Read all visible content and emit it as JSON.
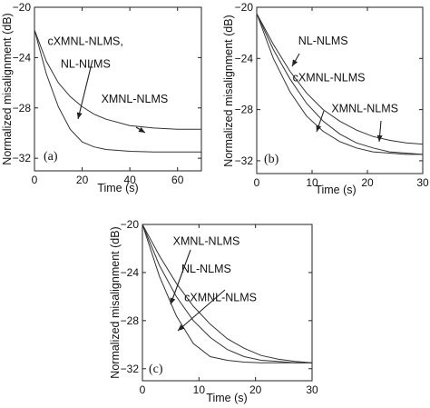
{
  "chart_data": [
    {
      "type": "line",
      "panel_label": "(a)",
      "xlabel": "Time (s)",
      "ylabel": "Normalized misalignment (dB)",
      "xlim": [
        0,
        70
      ],
      "ylim": [
        -33,
        -20
      ],
      "xticks": [
        0,
        20,
        40,
        60
      ],
      "yticks": [
        -20,
        -24,
        -28,
        -32
      ],
      "series": [
        {
          "x": [
            0,
            5,
            10,
            15,
            20,
            25,
            30,
            40,
            50,
            60,
            70
          ],
          "y": [
            -21.8,
            -25.3,
            -27.9,
            -29.7,
            -30.7,
            -31.1,
            -31.3,
            -31.45,
            -31.5,
            -31.5,
            -31.5
          ]
        },
        {
          "x": [
            0,
            5,
            10,
            15,
            20,
            25,
            30,
            40,
            50,
            60,
            70
          ],
          "y": [
            -21.8,
            -24.3,
            -26.0,
            -27.1,
            -27.9,
            -28.5,
            -28.9,
            -29.4,
            -29.6,
            -29.7,
            -29.7
          ]
        }
      ],
      "annotations": [
        {
          "text": "cXMNL-NLMS,",
          "x": 5.5,
          "y": -23.0
        },
        {
          "text": "NL-NLMS",
          "x": 11,
          "y": -24.8
        },
        {
          "text": "XMNL-NLMS",
          "x": 28,
          "y": -27.6
        }
      ]
    },
    {
      "type": "line",
      "panel_label": "(b)",
      "xlabel": "Time (s)",
      "ylabel": "Normalized misalignment (dB)",
      "xlim": [
        0,
        30
      ],
      "ylim": [
        -33,
        -20
      ],
      "xticks": [
        0,
        10,
        20,
        30
      ],
      "yticks": [
        -20,
        -24,
        -28,
        -32
      ],
      "series": [
        {
          "x": [
            0,
            3,
            6,
            9,
            12,
            15,
            18,
            21,
            24,
            27,
            30
          ],
          "y": [
            -20.5,
            -24.0,
            -26.6,
            -28.5,
            -29.7,
            -30.5,
            -31.0,
            -31.3,
            -31.4,
            -31.5,
            -31.5
          ]
        },
        {
          "x": [
            0,
            3,
            6,
            9,
            12,
            15,
            18,
            21,
            24,
            27,
            30
          ],
          "y": [
            -20.5,
            -23.3,
            -25.6,
            -27.5,
            -28.9,
            -29.9,
            -30.6,
            -31.0,
            -31.3,
            -31.4,
            -31.5
          ]
        },
        {
          "x": [
            0,
            3,
            6,
            9,
            12,
            15,
            18,
            21,
            24,
            27,
            30
          ],
          "y": [
            -20.5,
            -22.9,
            -25.0,
            -26.7,
            -28.0,
            -28.9,
            -29.6,
            -30.1,
            -30.4,
            -30.6,
            -30.7
          ]
        }
      ],
      "annotations": [
        {
          "text": "NL-NLMS",
          "x": 7.5,
          "y": -22.9
        },
        {
          "text": "cXMNL-NLMS",
          "x": 6.5,
          "y": -25.8
        },
        {
          "text": "XMNL-NLMS",
          "x": 13.5,
          "y": -28.2
        }
      ]
    },
    {
      "type": "line",
      "panel_label": "(c)",
      "xlabel": "Time (s)",
      "ylabel": "Normalized misalignment (dB)",
      "xlim": [
        0,
        30
      ],
      "ylim": [
        -33,
        -20
      ],
      "xticks": [
        0,
        10,
        20,
        30
      ],
      "yticks": [
        -20,
        -24,
        -28,
        -32
      ],
      "series": [
        {
          "x": [
            0,
            3,
            6,
            9,
            12,
            15,
            18,
            21,
            24,
            27,
            30
          ],
          "y": [
            -20.0,
            -24.3,
            -27.6,
            -29.9,
            -31.0,
            -31.3,
            -31.45,
            -31.5,
            -31.5,
            -31.5,
            -31.5
          ]
        },
        {
          "x": [
            0,
            3,
            6,
            9,
            12,
            15,
            18,
            21,
            24,
            27,
            30
          ],
          "y": [
            -20.0,
            -23.4,
            -26.0,
            -28.0,
            -29.4,
            -30.4,
            -31.0,
            -31.3,
            -31.4,
            -31.5,
            -31.5
          ]
        },
        {
          "x": [
            0,
            3,
            6,
            9,
            12,
            15,
            18,
            21,
            24,
            27,
            30
          ],
          "y": [
            -20.0,
            -22.6,
            -24.9,
            -26.8,
            -28.3,
            -29.5,
            -30.3,
            -30.9,
            -31.2,
            -31.4,
            -31.5
          ]
        }
      ],
      "annotations": [
        {
          "text": "XMNL-NLMS",
          "x": 5.4,
          "y": -21.7
        },
        {
          "text": "NL-NLMS",
          "x": 6.9,
          "y": -24.0
        },
        {
          "text": "cXMNL-NLMS",
          "x": 7.4,
          "y": -26.4
        }
      ]
    }
  ]
}
